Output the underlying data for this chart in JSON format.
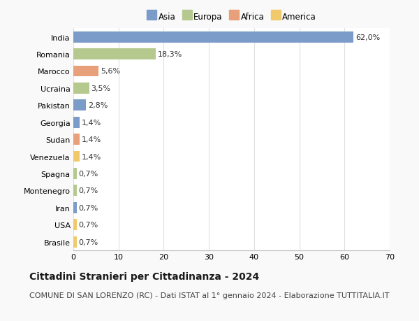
{
  "countries": [
    "India",
    "Romania",
    "Marocco",
    "Ucraina",
    "Pakistan",
    "Georgia",
    "Sudan",
    "Venezuela",
    "Spagna",
    "Montenegro",
    "Iran",
    "USA",
    "Brasile"
  ],
  "values": [
    62.0,
    18.3,
    5.6,
    3.5,
    2.8,
    1.4,
    1.4,
    1.4,
    0.7,
    0.7,
    0.7,
    0.7,
    0.7
  ],
  "labels": [
    "62,0%",
    "18,3%",
    "5,6%",
    "3,5%",
    "2,8%",
    "1,4%",
    "1,4%",
    "1,4%",
    "0,7%",
    "0,7%",
    "0,7%",
    "0,7%",
    "0,7%"
  ],
  "continents": [
    "Asia",
    "Europa",
    "Africa",
    "Europa",
    "Asia",
    "Asia",
    "Africa",
    "America",
    "Europa",
    "Europa",
    "Asia",
    "America",
    "America"
  ],
  "continent_colors": {
    "Asia": "#7b9bc8",
    "Europa": "#b5c98e",
    "Africa": "#e8a07a",
    "America": "#f0ca6a"
  },
  "legend_order": [
    "Asia",
    "Europa",
    "Africa",
    "America"
  ],
  "title": "Cittadini Stranieri per Cittadinanza - 2024",
  "subtitle": "COMUNE DI SAN LORENZO (RC) - Dati ISTAT al 1° gennaio 2024 - Elaborazione TUTTITALIA.IT",
  "xlim": [
    0,
    70
  ],
  "xticks": [
    0,
    10,
    20,
    30,
    40,
    50,
    60,
    70
  ],
  "plot_bg": "#ffffff",
  "fig_bg": "#f9f9f9",
  "grid_color": "#e0e0e0",
  "bar_height": 0.65,
  "label_fontsize": 8,
  "title_fontsize": 10,
  "subtitle_fontsize": 8,
  "tick_fontsize": 8,
  "legend_fontsize": 8.5
}
